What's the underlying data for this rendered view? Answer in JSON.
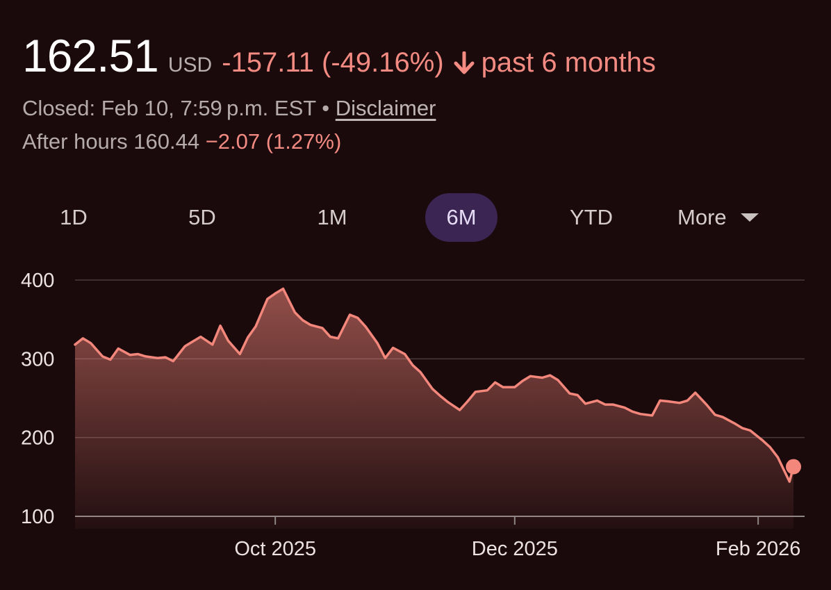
{
  "quote": {
    "price": "162.51",
    "currency": "USD",
    "change": "-157.11 (-49.16%)",
    "period": "past 6 months",
    "closed_label": "Closed: Feb 10, 7:59 p.m. EST",
    "separator": "•",
    "disclaimer": "Disclaimer",
    "after_hours_label": "After hours 160.44",
    "after_hours_change": "−2.07 (1.27%)"
  },
  "ranges": {
    "items": [
      "1D",
      "5D",
      "1M",
      "6M",
      "YTD"
    ],
    "more": "More",
    "selected": "6M"
  },
  "colors": {
    "line": "#f4877c",
    "negative": "#f48b82",
    "selected_tab": "#3b2553",
    "background": "#1b0a0c"
  },
  "chart_data": {
    "type": "area",
    "title": "",
    "xlabel": "",
    "ylabel": "",
    "ylim": [
      100,
      400
    ],
    "yticks": [
      400,
      300,
      200,
      100
    ],
    "xticks": [
      {
        "date": "2025-10-01",
        "label": "Oct 2025"
      },
      {
        "date": "2025-12-01",
        "label": "Dec 2025"
      },
      {
        "date": "2026-02-01",
        "label": "Feb 2026"
      }
    ],
    "grid": true,
    "x_start": "2025-08-11",
    "x_end": "2026-02-10",
    "last_point_marker": true,
    "series": [
      {
        "x": [
          "2025-08-11",
          "2025-08-13",
          "2025-08-15",
          "2025-08-18",
          "2025-08-20",
          "2025-08-22",
          "2025-08-25",
          "2025-08-27",
          "2025-08-29",
          "2025-09-01",
          "2025-09-03",
          "2025-09-05",
          "2025-09-08",
          "2025-09-10",
          "2025-09-12",
          "2025-09-15",
          "2025-09-17",
          "2025-09-19",
          "2025-09-22",
          "2025-09-24",
          "2025-09-26",
          "2025-09-29",
          "2025-10-01",
          "2025-10-03",
          "2025-10-06",
          "2025-10-08",
          "2025-10-10",
          "2025-10-13",
          "2025-10-15",
          "2025-10-17",
          "2025-10-20",
          "2025-10-22",
          "2025-10-24",
          "2025-10-27",
          "2025-10-29",
          "2025-10-31",
          "2025-11-03",
          "2025-11-05",
          "2025-11-07",
          "2025-11-10",
          "2025-11-12",
          "2025-11-14",
          "2025-11-17",
          "2025-11-19",
          "2025-11-21",
          "2025-11-24",
          "2025-11-26",
          "2025-11-28",
          "2025-12-01",
          "2025-12-03",
          "2025-12-05",
          "2025-12-08",
          "2025-12-10",
          "2025-12-12",
          "2025-12-15",
          "2025-12-17",
          "2025-12-19",
          "2025-12-22",
          "2025-12-24",
          "2025-12-26",
          "2025-12-29",
          "2025-12-31",
          "2026-01-02",
          "2026-01-05",
          "2026-01-07",
          "2026-01-09",
          "2026-01-12",
          "2026-01-14",
          "2026-01-16",
          "2026-01-19",
          "2026-01-21",
          "2026-01-23",
          "2026-01-26",
          "2026-01-28",
          "2026-01-30",
          "2026-02-02",
          "2026-02-04",
          "2026-02-06",
          "2026-02-09",
          "2026-02-10"
        ],
        "values": [
          318,
          326,
          320,
          303,
          299,
          313,
          305,
          306,
          303,
          301,
          302,
          297,
          316,
          322,
          328,
          318,
          342,
          323,
          306,
          327,
          341,
          376,
          383,
          389,
          359,
          349,
          343,
          339,
          328,
          326,
          356,
          352,
          341,
          320,
          301,
          314,
          306,
          292,
          283,
          262,
          253,
          245,
          235,
          246,
          258,
          260,
          270,
          264,
          264,
          272,
          278,
          276,
          279,
          273,
          256,
          254,
          243,
          247,
          242,
          242,
          238,
          233,
          230,
          228,
          247,
          246,
          244,
          247,
          257,
          241,
          229,
          226,
          218,
          212,
          209,
          197,
          188,
          175,
          144,
          163
        ]
      }
    ]
  }
}
